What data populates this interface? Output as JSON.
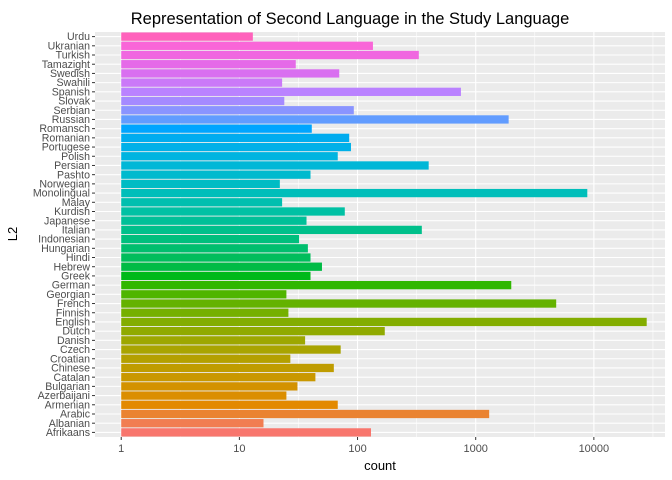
{
  "chart_data": {
    "type": "bar",
    "orientation": "horizontal",
    "title": "Representation of Second Language in the Study Language",
    "xlabel": "count",
    "ylabel": "L2",
    "x_scale": "log10",
    "xlim": [
      0.6,
      40000
    ],
    "x_ticks": [
      1,
      10,
      100,
      1000,
      10000
    ],
    "x_tick_labels": [
      "1",
      "10",
      "100",
      "1000",
      "10000"
    ],
    "grid": true,
    "legend": "none",
    "categories": [
      "Afrikaans",
      "Albanian",
      "Arabic",
      "Armenian",
      "Azerbaijani",
      "Bulgarian",
      "Catalan",
      "Chinese",
      "Croatian",
      "Czech",
      "Danish",
      "Dutch",
      "English",
      "Finnish",
      "French",
      "Georgian",
      "German",
      "Greek",
      "Hebrew",
      "Hindi",
      "Hungarian",
      "Indonesian",
      "Italian",
      "Japanese",
      "Kurdish",
      "Malay",
      "Monolingual",
      "Norwegian",
      "Pashto",
      "Persian",
      "Polish",
      "Portugese",
      "Romanian",
      "Romansch",
      "Russian",
      "Serbian",
      "Slovak",
      "Spanish",
      "Swahili",
      "Swedish",
      "Tamazight",
      "Turkish",
      "Ukranian",
      "Urdu"
    ],
    "values": [
      130,
      16,
      1300,
      68,
      25,
      31,
      44,
      63,
      27,
      72,
      36,
      170,
      28000,
      26,
      4800,
      25,
      2000,
      40,
      50,
      40,
      38,
      32,
      350,
      37,
      78,
      23,
      8800,
      22,
      40,
      400,
      68,
      88,
      85,
      41,
      1900,
      93,
      24,
      750,
      23,
      70,
      30,
      330,
      135,
      13
    ],
    "colors": [
      "#F8766D",
      "#F17D51",
      "#EA8331",
      "#E38900",
      "#DB8E00",
      "#D39200",
      "#C99800",
      "#BF9C00",
      "#B4A000",
      "#A9A400",
      "#9DA700",
      "#90AA00",
      "#83AD00",
      "#75B000",
      "#64B200",
      "#4FB500",
      "#30B700",
      "#00B919",
      "#00BB45",
      "#00BD5C",
      "#00BE6E",
      "#00BF7D",
      "#00C08B",
      "#00C098",
      "#00C1A4",
      "#00BFAF",
      "#00BEBA",
      "#00BCC4",
      "#00BACE",
      "#00B7D7",
      "#00B4E0",
      "#00B0E8",
      "#00ACEF",
      "#00A5FF",
      "#619CFF",
      "#8A94FF",
      "#A58AFF",
      "#BA82FF",
      "#CB79F8",
      "#D96FF0",
      "#E56AE8",
      "#F067E0",
      "#F966D8",
      "#FF62BC"
    ]
  }
}
